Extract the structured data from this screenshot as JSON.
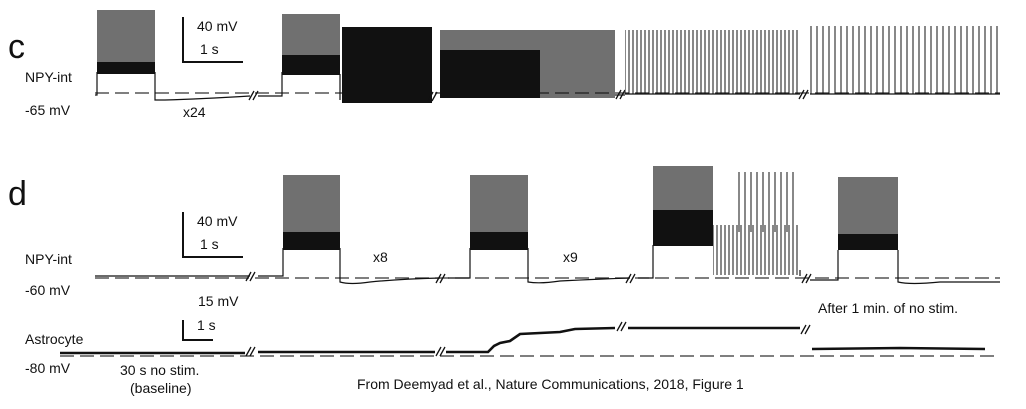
{
  "panel_c": {
    "label": "c",
    "cell": "NPY-int",
    "rest": "-65 mV",
    "repeat": "x24",
    "scale_v": "40 mV",
    "scale_t": "1 s"
  },
  "panel_d": {
    "label": "d",
    "cell": "NPY-int",
    "rest": "-60 mV",
    "scale_v": "40 mV",
    "scale_t": "1 s",
    "repeat_1": "x8",
    "repeat_2": "x9",
    "after": "After 1 min. of no stim.",
    "astro": {
      "cell": "Astrocyte",
      "rest": "-80 mV",
      "scale_v": "15 mV",
      "scale_t": "1 s",
      "note_1": "30 s no stim.",
      "note_2": "(baseline)"
    }
  },
  "citation": "From Deemyad et al., Nature Communications, 2018, Figure 1"
}
